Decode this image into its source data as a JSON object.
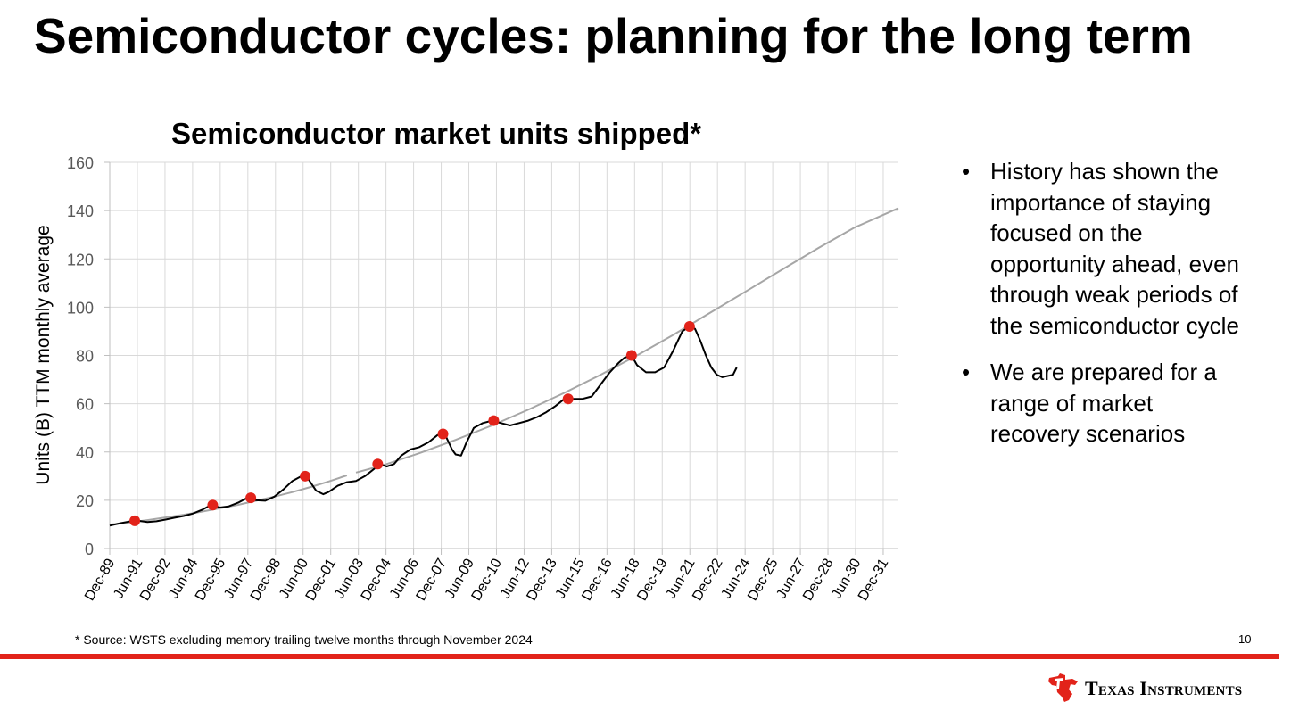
{
  "slide": {
    "title": "Semiconductor cycles: planning for the long term",
    "bullets": [
      "History has shown the importance of staying focused on the opportunity ahead, even through weak periods of the semiconductor cycle",
      "We are prepared for a range of market recovery scenarios"
    ],
    "bullet_glyph": "•",
    "source_note": "* Source: WSTS excluding memory trailing twelve months through November 2024",
    "page_number": "10",
    "brand": "Texas Instruments",
    "accent_color": "#e2231a"
  },
  "chart_data": {
    "type": "line",
    "title": "Semiconductor market units shipped*",
    "xlabel": "",
    "ylabel": "Units (B) TTM monthly average",
    "ylim": [
      0,
      160
    ],
    "yticks": [
      0,
      20,
      40,
      60,
      80,
      100,
      120,
      140,
      160
    ],
    "xlim": [
      1989.92,
      2033.42
    ],
    "x_categories": [
      "Dec-89",
      "Jun-91",
      "Dec-92",
      "Jun-94",
      "Dec-95",
      "Jun-97",
      "Dec-98",
      "Jun-00",
      "Dec-01",
      "Jun-03",
      "Dec-04",
      "Jun-06",
      "Dec-07",
      "Jun-09",
      "Dec-10",
      "Jun-12",
      "Dec-13",
      "Jun-15",
      "Dec-16",
      "Jun-18",
      "Dec-19",
      "Jun-21",
      "Dec-22",
      "Jun-24",
      "Dec-25",
      "Jun-27",
      "Dec-28",
      "Jun-30",
      "Dec-31"
    ],
    "grid": true,
    "colors": {
      "actual": "#000000",
      "trend": "#a6a6a6",
      "peaks": "#e2231a",
      "grid": "#d9d9d9",
      "axis": "#bfbfbf"
    },
    "series": [
      {
        "role": "actual",
        "x": [
          1989.92,
          1990.5,
          1991.0,
          1991.5,
          1992.0,
          1992.5,
          1993.0,
          1993.5,
          1994.0,
          1994.5,
          1995.0,
          1995.5,
          1996.0,
          1996.5,
          1997.0,
          1997.5,
          1998.0,
          1998.5,
          1999.0,
          1999.5,
          2000.0,
          2000.5,
          2000.9,
          2001.3,
          2001.7,
          2002.0,
          2002.5,
          2003.0,
          2003.5,
          2004.0,
          2004.5,
          2004.8,
          2005.2,
          2005.6,
          2006.0,
          2006.5,
          2007.0,
          2007.5,
          2008.0,
          2008.4,
          2008.8,
          2009.0,
          2009.3,
          2009.6,
          2010.0,
          2010.5,
          2011.0,
          2011.5,
          2012.0,
          2012.5,
          2013.0,
          2013.5,
          2014.0,
          2014.5,
          2015.0,
          2015.5,
          2016.0,
          2016.5,
          2017.0,
          2017.5,
          2018.0,
          2018.3,
          2018.7,
          2019.0,
          2019.5,
          2020.0,
          2020.5,
          2021.0,
          2021.5,
          2021.9,
          2022.2,
          2022.5,
          2022.8,
          2023.1,
          2023.4,
          2023.7,
          2024.0,
          2024.3,
          2024.5
        ],
        "y": [
          9.5,
          10.5,
          11.2,
          11.5,
          11.0,
          11.3,
          12.0,
          12.8,
          13.5,
          14.5,
          16.0,
          18.0,
          17.0,
          17.5,
          19.0,
          21.0,
          20.0,
          19.8,
          21.5,
          24.5,
          28.0,
          30.0,
          28.5,
          24.0,
          22.5,
          23.5,
          26.0,
          27.5,
          28.0,
          30.0,
          33.0,
          35.0,
          34.0,
          35.0,
          38.5,
          41.0,
          42.0,
          44.0,
          47.0,
          47.5,
          41.0,
          39.0,
          38.5,
          44.0,
          50.0,
          52.0,
          53.0,
          52.0,
          51.0,
          52.0,
          53.0,
          54.5,
          56.5,
          59.0,
          62.0,
          62.0,
          62.0,
          63.0,
          68.0,
          73.0,
          77.0,
          79.0,
          80.0,
          76.0,
          73.0,
          73.0,
          75.0,
          82.0,
          90.0,
          92.0,
          91.0,
          86.0,
          80.0,
          75.0,
          72.0,
          71.0,
          71.5,
          72.0,
          75.0
        ]
      },
      {
        "role": "trend",
        "segments": [
          {
            "x": [
              1989.92,
              1991,
              1992,
              1993,
              1994,
              1995,
              1996,
              1997,
              1998,
              1999,
              2000,
              2001,
              2002,
              2003
            ],
            "y": [
              9.9,
              10.8,
              11.8,
              12.9,
              14.0,
              15.3,
              16.7,
              18.1,
              19.8,
              21.5,
              23.4,
              25.5,
              27.8,
              30.3
            ]
          },
          {
            "x": [
              2003.5,
              2005,
              2007,
              2009,
              2011,
              2013,
              2015,
              2017,
              2019,
              2021,
              2023,
              2025,
              2027,
              2029,
              2031,
              2033.42
            ],
            "y": [
              31.5,
              34.5,
              39.5,
              45.0,
              51.0,
              57.5,
              64.5,
              72.0,
              80.0,
              88.5,
              97.5,
              106.5,
              115.5,
              124.5,
              133.0,
              141.0
            ]
          }
        ]
      }
    ],
    "peaks": [
      {
        "x": 1991.3,
        "y": 11.5
      },
      {
        "x": 1995.6,
        "y": 18.0
      },
      {
        "x": 1997.7,
        "y": 21.0
      },
      {
        "x": 2000.7,
        "y": 30.0
      },
      {
        "x": 2004.7,
        "y": 35.0
      },
      {
        "x": 2008.3,
        "y": 47.5
      },
      {
        "x": 2011.1,
        "y": 53.0
      },
      {
        "x": 2015.2,
        "y": 62.0
      },
      {
        "x": 2018.7,
        "y": 80.0
      },
      {
        "x": 2021.9,
        "y": 92.0
      }
    ]
  }
}
